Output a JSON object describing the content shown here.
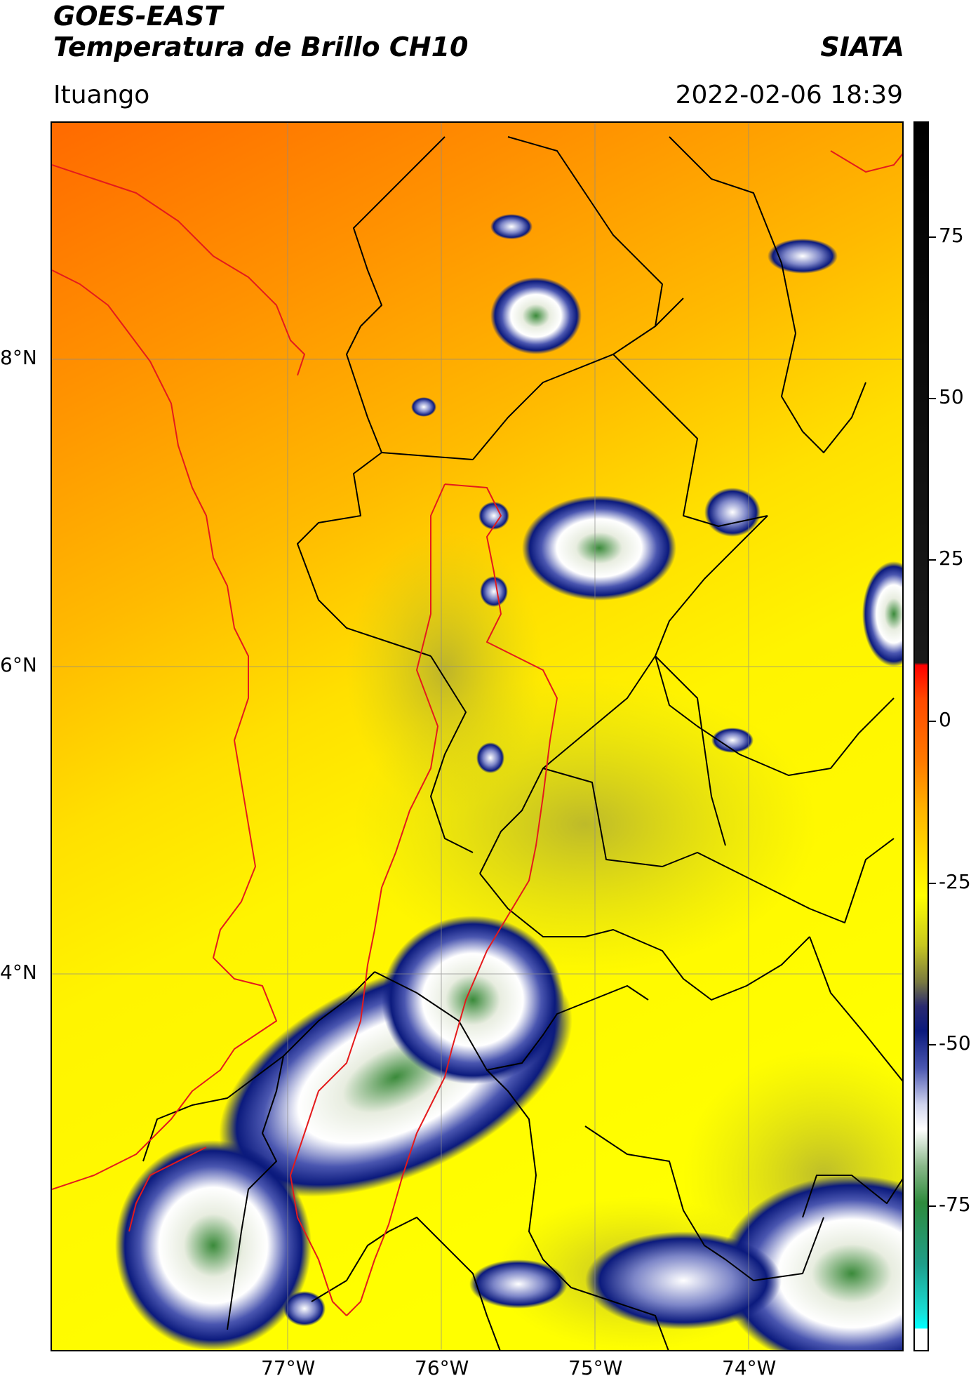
{
  "header": {
    "line1": "GOES-EAST",
    "line2": "Temperatura de Brillo CH10",
    "org": "SIATA",
    "location": "Ituango",
    "datetime": "2022-02-06 18:39"
  },
  "map": {
    "lat_labels": [
      "8°N",
      "6°N",
      "4°N"
    ],
    "lon_labels": [
      "77°W",
      "76°W",
      "75°W",
      "74°W"
    ]
  },
  "colorbar": {
    "ticks": [
      "75",
      "50",
      "25",
      "0",
      "-25",
      "-50",
      "-75"
    ]
  },
  "colors": {
    "warm": "#ff7b00",
    "mid": "#ffea00",
    "yellow": "#ffff00",
    "navy": "#0b1a7d",
    "white": "#ffffff",
    "green": "#2e8b3c",
    "border_red": "#e41a1c",
    "border_black": "#000000"
  }
}
